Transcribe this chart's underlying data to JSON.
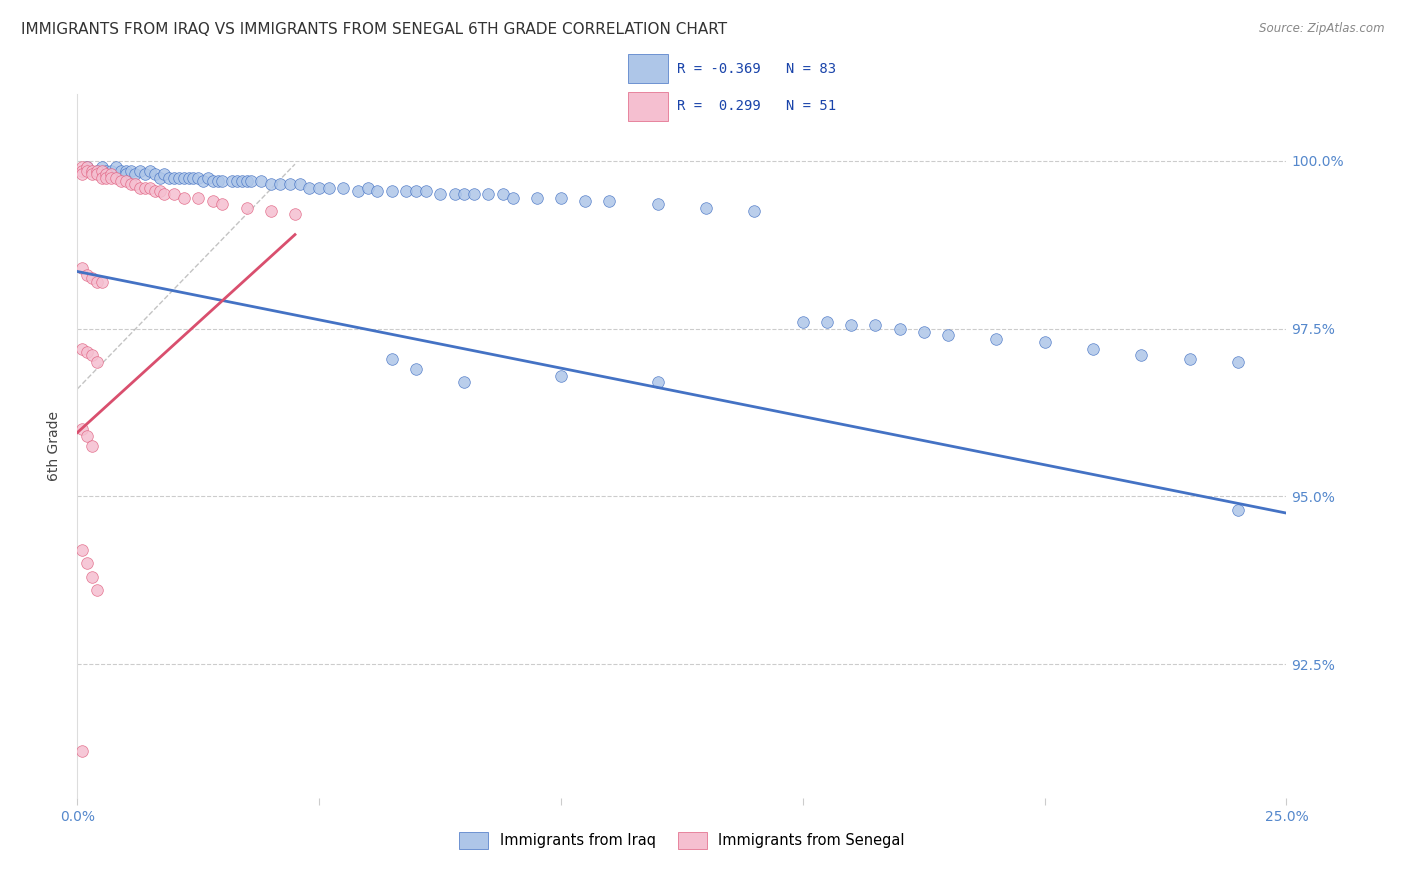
{
  "title": "IMMIGRANTS FROM IRAQ VS IMMIGRANTS FROM SENEGAL 6TH GRADE CORRELATION CHART",
  "source": "Source: ZipAtlas.com",
  "ylabel": "6th Grade",
  "xlim": [
    0.0,
    0.25
  ],
  "ylim": [
    0.905,
    1.01
  ],
  "ytick_positions": [
    0.925,
    0.95,
    0.975,
    1.0
  ],
  "ytick_labels": [
    "92.5%",
    "95.0%",
    "97.5%",
    "100.0%"
  ],
  "xtick_positions": [
    0.0,
    0.05,
    0.1,
    0.15,
    0.2,
    0.25
  ],
  "xtick_labels": [
    "0.0%",
    "",
    "",
    "",
    "",
    "25.0%"
  ],
  "legend_iraq_label": "Immigrants from Iraq",
  "legend_senegal_label": "Immigrants from Senegal",
  "iraq_color": "#aec6e8",
  "senegal_color": "#f5bfd0",
  "iraq_edge_color": "#4472c4",
  "senegal_edge_color": "#e06080",
  "iraq_line_color": "#4472c4",
  "senegal_line_color": "#d94f6e",
  "iraq_R": -0.369,
  "iraq_N": 83,
  "senegal_R": 0.299,
  "senegal_N": 51,
  "iraq_trend_x": [
    0.0,
    0.25
  ],
  "iraq_trend_y": [
    0.9835,
    0.9475
  ],
  "senegal_trend_x": [
    0.0,
    0.045
  ],
  "senegal_trend_y": [
    0.9595,
    0.989
  ],
  "dashed_line_x": [
    0.0,
    0.045
  ],
  "dashed_line_y": [
    0.966,
    0.9995
  ],
  "background_color": "#ffffff",
  "grid_color": "#cccccc",
  "title_fontsize": 11,
  "axis_label_fontsize": 10,
  "tick_fontsize": 10,
  "marker_size": 70,
  "iraq_scatter_x": [
    0.002,
    0.004,
    0.005,
    0.006,
    0.007,
    0.008,
    0.009,
    0.01,
    0.01,
    0.011,
    0.012,
    0.013,
    0.014,
    0.015,
    0.016,
    0.017,
    0.018,
    0.019,
    0.02,
    0.021,
    0.022,
    0.023,
    0.024,
    0.025,
    0.026,
    0.027,
    0.028,
    0.029,
    0.03,
    0.032,
    0.033,
    0.034,
    0.035,
    0.036,
    0.038,
    0.04,
    0.042,
    0.044,
    0.046,
    0.048,
    0.05,
    0.052,
    0.055,
    0.058,
    0.06,
    0.062,
    0.065,
    0.068,
    0.07,
    0.072,
    0.075,
    0.078,
    0.08,
    0.082,
    0.085,
    0.088,
    0.09,
    0.095,
    0.1,
    0.105,
    0.11,
    0.12,
    0.13,
    0.14,
    0.15,
    0.155,
    0.16,
    0.165,
    0.17,
    0.175,
    0.18,
    0.19,
    0.2,
    0.21,
    0.22,
    0.23,
    0.24,
    0.065,
    0.07,
    0.08,
    0.1,
    0.12,
    0.24
  ],
  "iraq_scatter_y": [
    0.999,
    0.9985,
    0.999,
    0.9985,
    0.9985,
    0.999,
    0.9985,
    0.9985,
    0.998,
    0.9985,
    0.998,
    0.9985,
    0.998,
    0.9985,
    0.998,
    0.9975,
    0.998,
    0.9975,
    0.9975,
    0.9975,
    0.9975,
    0.9975,
    0.9975,
    0.9975,
    0.997,
    0.9975,
    0.997,
    0.997,
    0.997,
    0.997,
    0.997,
    0.997,
    0.997,
    0.997,
    0.997,
    0.9965,
    0.9965,
    0.9965,
    0.9965,
    0.996,
    0.996,
    0.996,
    0.996,
    0.9955,
    0.996,
    0.9955,
    0.9955,
    0.9955,
    0.9955,
    0.9955,
    0.995,
    0.995,
    0.995,
    0.995,
    0.995,
    0.995,
    0.9945,
    0.9945,
    0.9945,
    0.994,
    0.994,
    0.9935,
    0.993,
    0.9925,
    0.976,
    0.976,
    0.9755,
    0.9755,
    0.975,
    0.9745,
    0.974,
    0.9735,
    0.973,
    0.972,
    0.971,
    0.9705,
    0.97,
    0.9705,
    0.969,
    0.967,
    0.968,
    0.967,
    0.948
  ],
  "senegal_scatter_x": [
    0.001,
    0.001,
    0.001,
    0.002,
    0.002,
    0.003,
    0.003,
    0.004,
    0.004,
    0.005,
    0.005,
    0.006,
    0.006,
    0.007,
    0.007,
    0.008,
    0.009,
    0.01,
    0.011,
    0.012,
    0.013,
    0.014,
    0.015,
    0.016,
    0.017,
    0.018,
    0.02,
    0.022,
    0.025,
    0.028,
    0.03,
    0.035,
    0.04,
    0.045,
    0.001,
    0.002,
    0.003,
    0.004,
    0.005,
    0.001,
    0.002,
    0.003,
    0.004,
    0.001,
    0.002,
    0.003,
    0.001,
    0.002,
    0.003,
    0.004,
    0.001
  ],
  "senegal_scatter_y": [
    0.999,
    0.9985,
    0.998,
    0.999,
    0.9985,
    0.9985,
    0.998,
    0.9985,
    0.998,
    0.9985,
    0.9975,
    0.998,
    0.9975,
    0.998,
    0.9975,
    0.9975,
    0.997,
    0.997,
    0.9965,
    0.9965,
    0.996,
    0.996,
    0.996,
    0.9955,
    0.9955,
    0.995,
    0.995,
    0.9945,
    0.9945,
    0.994,
    0.9935,
    0.993,
    0.9925,
    0.992,
    0.984,
    0.983,
    0.9825,
    0.982,
    0.982,
    0.972,
    0.9715,
    0.971,
    0.97,
    0.96,
    0.959,
    0.9575,
    0.942,
    0.94,
    0.938,
    0.936,
    0.912
  ]
}
